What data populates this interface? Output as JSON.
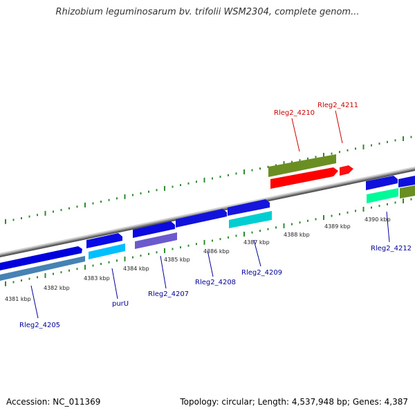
{
  "title": "Rhizobium leguminosarum bv. trifolii WSM2304, complete genom...",
  "footer": {
    "accession": "Accession: NC_011369",
    "summary": "Topology: circular; Length: 4,537,948 bp; Genes: 4,387"
  },
  "colors": {
    "backbone": "#9a9a9a",
    "tick": "#2e8b2e",
    "label_red": "#cc0000",
    "label_blue": "#000099"
  },
  "kbp_labels": [
    "4381 kbp",
    "4382 kbp",
    "4383 kbp",
    "4384 kbp",
    "4385 kbp",
    "4386 kbp",
    "4387 kbp",
    "4388 kbp",
    "4389 kbp",
    "4390 kbp"
  ],
  "genes": [
    {
      "name": "Rleg2_4205",
      "color": "#0000cc",
      "label_color": "blue"
    },
    {
      "name": "purU",
      "color": "#1a1aee",
      "label_color": "blue"
    },
    {
      "name": "Rleg2_4207",
      "color": "#1010e0",
      "label_color": "blue"
    },
    {
      "name": "Rleg2_4208",
      "color": "#1212dd",
      "label_color": "blue"
    },
    {
      "name": "Rleg2_4209",
      "color": "#1515dd",
      "label_color": "blue"
    },
    {
      "name": "Rleg2_4210",
      "color": "#6b8e23",
      "label_color": "red"
    },
    {
      "name": "Rleg2_4211",
      "color": "#ff0000",
      "label_color": "red"
    },
    {
      "name": "Rleg2_4212",
      "color": "#1010dd",
      "label_color": "blue"
    }
  ]
}
